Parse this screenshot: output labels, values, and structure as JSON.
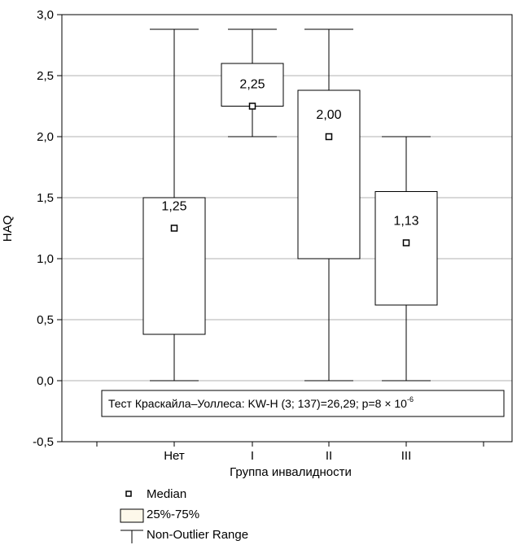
{
  "chart_data": {
    "type": "box",
    "xlabel": "Группа инвалидности",
    "ylabel": "HAQ",
    "ylim": [
      -0.5,
      3.0
    ],
    "yticks": [
      "-0,5",
      "0,0",
      "0,5",
      "1,0",
      "1,5",
      "2,0",
      "2,5",
      "3,0"
    ],
    "ytick_values": [
      -0.5,
      0.0,
      0.5,
      1.0,
      1.5,
      2.0,
      2.5,
      3.0
    ],
    "grid": "horizontal",
    "categories": [
      "Нет",
      "I",
      "II",
      "III"
    ],
    "boxes": [
      {
        "category": "Нет",
        "min": 0.0,
        "q1": 0.38,
        "median": 1.25,
        "q3": 1.5,
        "max": 2.88,
        "median_label": "1,25"
      },
      {
        "category": "I",
        "min": 2.0,
        "q1": 2.25,
        "median": 2.25,
        "q3": 2.6,
        "max": 2.88,
        "median_label": "2,25"
      },
      {
        "category": "II",
        "min": 0.0,
        "q1": 1.0,
        "median": 2.0,
        "q3": 2.38,
        "max": 2.88,
        "median_label": "2,00"
      },
      {
        "category": "III",
        "min": 0.0,
        "q1": 0.62,
        "median": 1.13,
        "q3": 1.55,
        "max": 2.0,
        "median_label": "1,13"
      }
    ],
    "annotation": {
      "text": "Тест Краскайла–Уоллеса: KW-H (3; 137)=26,29; p=8 × 10",
      "superscript": "-6"
    },
    "legend": {
      "position": "bottom-left",
      "items": [
        {
          "symbol": "square-marker",
          "label": "Median"
        },
        {
          "symbol": "box",
          "label": "25%-75%"
        },
        {
          "symbol": "whisker",
          "label": "Non-Outlier Range"
        }
      ],
      "box_fill": "#fdf8ea"
    },
    "colors": {
      "line": "#000000",
      "grid": "#b0b0b0",
      "box_fill": "#ffffff"
    }
  }
}
